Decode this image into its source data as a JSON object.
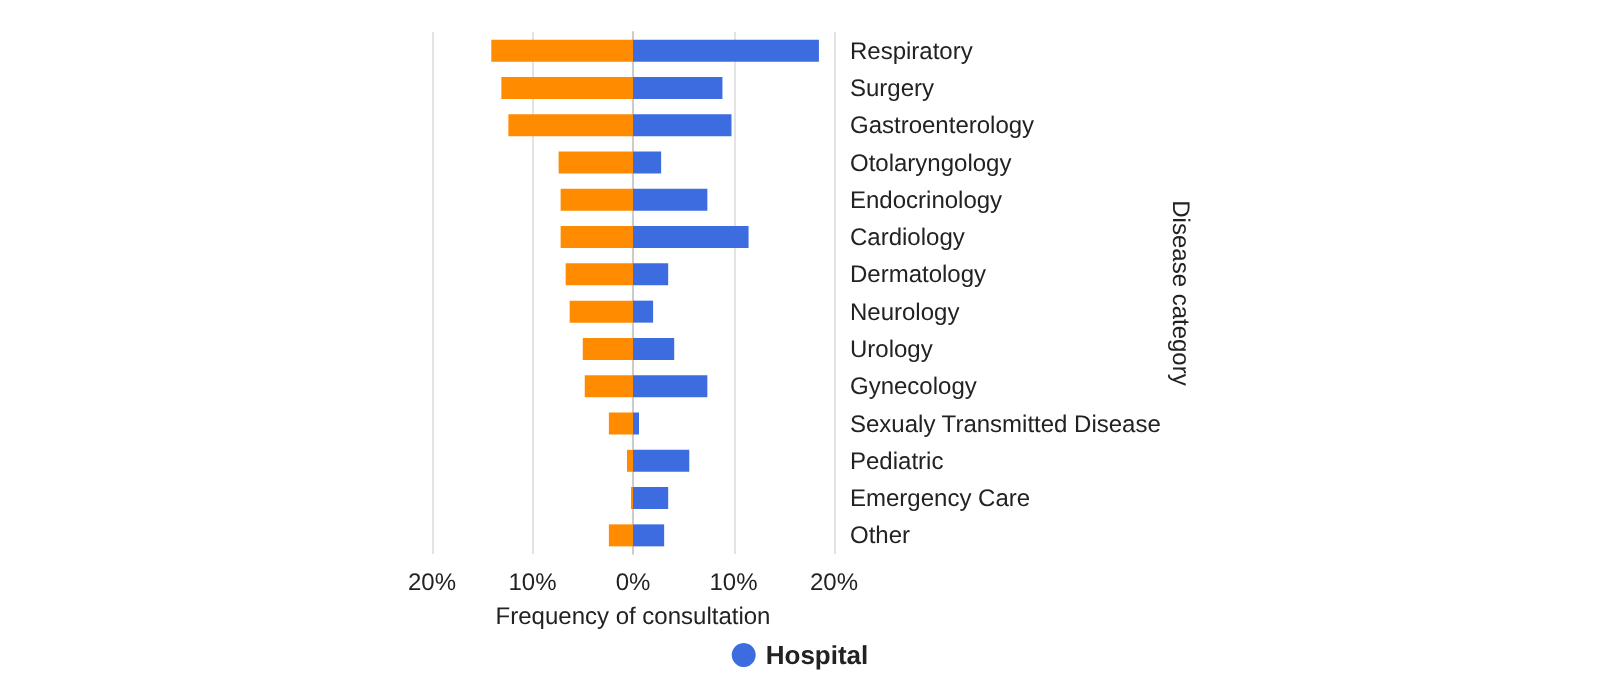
{
  "chart_data": {
    "type": "bar",
    "orientation": "horizontal",
    "stacked": true,
    "xlabel": "Frequency of consultation",
    "ylabel": "Disease category",
    "categories": [
      "Respiratory",
      "Surgery",
      "Gastroenterology",
      "Otolaryngology",
      "Endocrinology",
      "Cardiology",
      "Dermatology",
      "Neurology",
      "Urology",
      "Gynecology",
      "Sexualy Transmitted Disease",
      "Pediatric",
      "Emergency Care",
      "Other"
    ],
    "series": [
      {
        "color": "#ff8c00",
        "values": [
          -14.1,
          -13.1,
          -12.4,
          -7.4,
          -7.2,
          -7.2,
          -6.7,
          -6.3,
          -5.0,
          -4.8,
          -2.4,
          -0.6,
          -0.2,
          -2.4
        ]
      },
      {
        "name": "Hospital",
        "color": "#3d6ce0",
        "values": [
          18.5,
          8.9,
          9.8,
          2.8,
          7.4,
          11.5,
          3.5,
          2.0,
          4.1,
          7.4,
          0.6,
          5.6,
          3.5,
          3.1
        ]
      }
    ],
    "xlim": [
      -20,
      20
    ],
    "xticks": [
      {
        "value": -20,
        "label": "20%"
      },
      {
        "value": -10,
        "label": "10%"
      },
      {
        "value": 0,
        "label": "0%"
      },
      {
        "value": 10,
        "label": "10%"
      },
      {
        "value": 20,
        "label": "20%"
      }
    ],
    "grid": "x",
    "legend": "bottom"
  }
}
